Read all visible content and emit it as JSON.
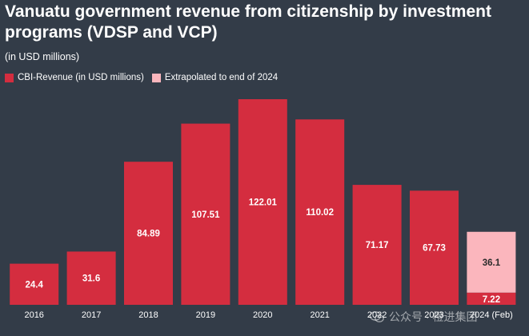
{
  "header": {
    "title": "Vanuatu government revenue from citizenship by investment programs (VDSP and VCP)",
    "subtitle": "(in USD millions)"
  },
  "legend": {
    "items": [
      {
        "label": "CBI-Revenue (in USD millions)",
        "color": "#d42d3f"
      },
      {
        "label": "Extrapolated to end of 2024",
        "color": "#fbb6bd"
      }
    ]
  },
  "watermark": {
    "text": "公众号 · 橙进集团",
    "icon": "wechat-icon"
  },
  "chart_data": {
    "type": "bar",
    "stacked": true,
    "categories": [
      "2016",
      "2017",
      "2018",
      "2019",
      "2020",
      "2021",
      "2022",
      "2023",
      "2024 (Feb)"
    ],
    "series": [
      {
        "name": "CBI-Revenue (in USD millions)",
        "color": "#d42d3f",
        "values": [
          24.4,
          31.6,
          84.89,
          107.51,
          122.01,
          110.02,
          71.17,
          67.73,
          7.22
        ]
      },
      {
        "name": "Extrapolated to end of 2024",
        "color": "#fbb6bd",
        "values": [
          null,
          null,
          null,
          null,
          null,
          null,
          null,
          null,
          36.1
        ]
      }
    ],
    "data_labels": [
      "24.4",
      "31.6",
      "84.89",
      "107.51",
      "122.01",
      "110.02",
      "71.17",
      "67.73",
      "7.22"
    ],
    "extrapolated_label": "36.1",
    "ylim": [
      0,
      122.01
    ],
    "grid": false,
    "legend_position": "top-left"
  }
}
